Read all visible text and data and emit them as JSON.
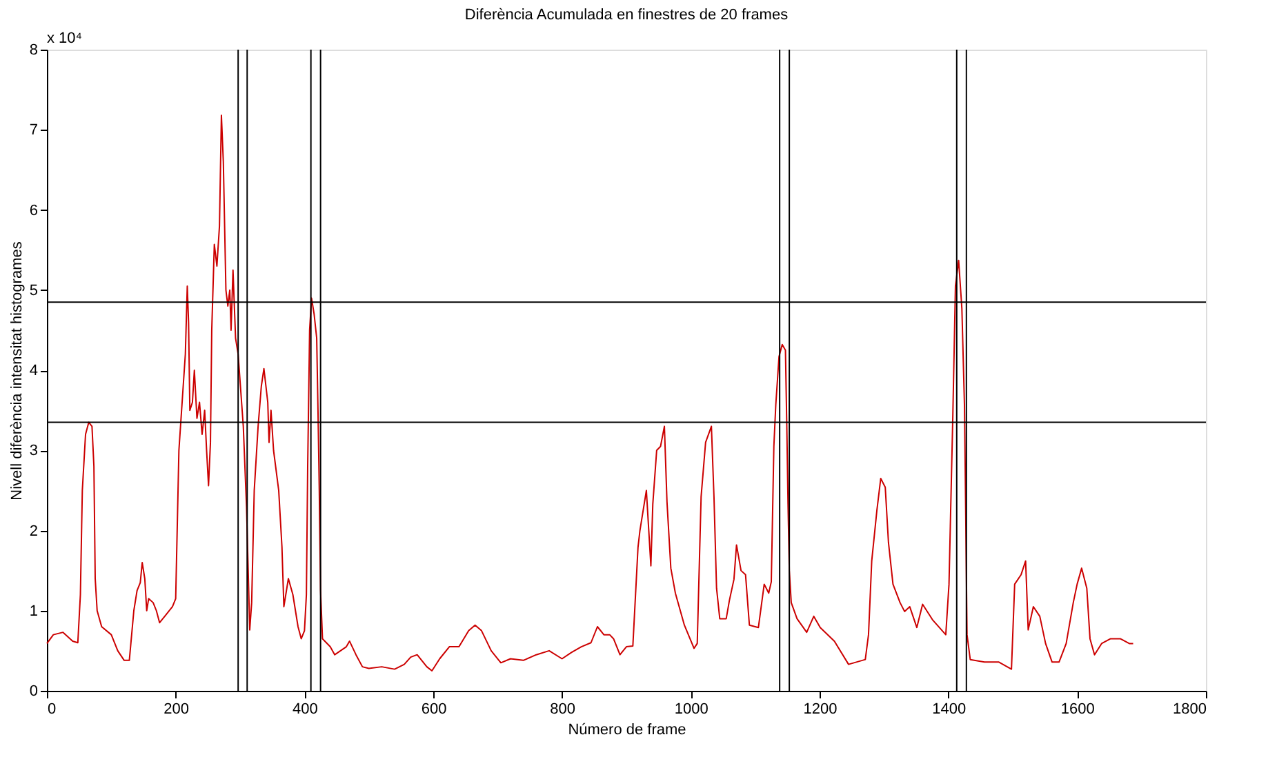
{
  "chart_data": {
    "type": "line",
    "title": "Diferència Acumulada en finestres de 20 frames",
    "xlabel": "Número de frame",
    "ylabel": "Nivell diferència intensitat histogrames",
    "annotations": [
      "x 10⁴"
    ],
    "xlim": [
      0,
      1800
    ],
    "xticks": [
      0,
      200,
      400,
      600,
      800,
      1000,
      1200,
      1400,
      1600,
      1800
    ],
    "ylim": [
      0,
      8
    ],
    "yticks": [
      0,
      1,
      2,
      3,
      4,
      5,
      6,
      7,
      8
    ],
    "grid": false,
    "marker": "none",
    "line_style": "solid",
    "ref_lines": [
      {
        "axis": "y",
        "value": 4.85,
        "color": "#000000"
      },
      {
        "axis": "y",
        "value": 3.35,
        "color": "#000000"
      },
      {
        "axis": "x",
        "value": 297,
        "color": "#000000"
      },
      {
        "axis": "x",
        "value": 311,
        "color": "#000000"
      },
      {
        "axis": "x",
        "value": 410,
        "color": "#000000"
      },
      {
        "axis": "x",
        "value": 425,
        "color": "#000000"
      },
      {
        "axis": "x",
        "value": 1138,
        "color": "#000000"
      },
      {
        "axis": "x",
        "value": 1153,
        "color": "#000000"
      },
      {
        "axis": "x",
        "value": 1413,
        "color": "#000000"
      },
      {
        "axis": "x",
        "value": 1428,
        "color": "#000000"
      }
    ],
    "series": [
      {
        "color": "#cc0000",
        "x": [
          0,
          10,
          25,
          40,
          48,
          52,
          55,
          60,
          65,
          70,
          73,
          75,
          78,
          85,
          100,
          110,
          120,
          128,
          135,
          140,
          145,
          148,
          152,
          155,
          158,
          165,
          170,
          175,
          185,
          195,
          200,
          205,
          210,
          215,
          218,
          220,
          222,
          226,
          229,
          233,
          237,
          241,
          245,
          248,
          251,
          254,
          256,
          260,
          264,
          268,
          271,
          274,
          278,
          281,
          284,
          286,
          289,
          293,
          297,
          305,
          310,
          315,
          318,
          322,
          328,
          333,
          337,
          343,
          345,
          348,
          352,
          360,
          365,
          368,
          375,
          382,
          390,
          395,
          400,
          403,
          405,
          408,
          411,
          415,
          419,
          421,
          423,
          425,
          428,
          440,
          447,
          465,
          470,
          480,
          490,
          500,
          520,
          540,
          555,
          565,
          575,
          590,
          598,
          610,
          625,
          640,
          655,
          665,
          675,
          690,
          705,
          720,
          740,
          760,
          780,
          800,
          815,
          830,
          845,
          855,
          865,
          874,
          880,
          890,
          900,
          910,
          918,
          921,
          931,
          938,
          941,
          947,
          953,
          959,
          963,
          969,
          976,
          990,
          1005,
          1010,
          1016,
          1023,
          1032,
          1036,
          1040,
          1045,
          1055,
          1060,
          1067,
          1071,
          1078,
          1085,
          1091,
          1105,
          1114,
          1121,
          1125,
          1129,
          1132,
          1137,
          1142,
          1147,
          1149,
          1151,
          1153,
          1156,
          1165,
          1180,
          1191,
          1201,
          1223,
          1245,
          1271,
          1276,
          1281,
          1289,
          1295,
          1302,
          1307,
          1314,
          1325,
          1332,
          1340,
          1351,
          1360,
          1376,
          1396,
          1401,
          1407,
          1411,
          1416,
          1421,
          1425,
          1427,
          1429,
          1434,
          1456,
          1478,
          1498,
          1503,
          1513,
          1520,
          1524,
          1532,
          1542,
          1551,
          1561,
          1572,
          1583,
          1594,
          1600,
          1607,
          1615,
          1620,
          1627,
          1638,
          1652,
          1667,
          1681,
          1687
        ],
        "values": [
          0.59,
          0.7,
          0.73,
          0.62,
          0.6,
          1.2,
          2.5,
          3.2,
          3.35,
          3.3,
          2.8,
          1.4,
          1.0,
          0.8,
          0.7,
          0.5,
          0.38,
          0.38,
          1.0,
          1.25,
          1.35,
          1.6,
          1.4,
          1.0,
          1.15,
          1.1,
          1.0,
          0.85,
          0.95,
          1.05,
          1.15,
          3.0,
          3.6,
          4.2,
          5.05,
          4.6,
          3.5,
          3.6,
          4.0,
          3.4,
          3.6,
          3.2,
          3.5,
          3.0,
          2.56,
          3.1,
          4.5,
          5.57,
          5.3,
          5.8,
          7.18,
          6.6,
          5.0,
          4.8,
          5.0,
          4.5,
          5.25,
          4.4,
          4.2,
          3.3,
          2.3,
          0.76,
          1.1,
          2.5,
          3.3,
          3.8,
          4.02,
          3.6,
          3.1,
          3.5,
          3.0,
          2.5,
          1.8,
          1.05,
          1.4,
          1.2,
          0.8,
          0.65,
          0.75,
          1.2,
          2.8,
          4.5,
          4.9,
          4.7,
          4.4,
          3.5,
          2.5,
          1.25,
          0.65,
          0.55,
          0.45,
          0.55,
          0.62,
          0.45,
          0.3,
          0.28,
          0.3,
          0.27,
          0.33,
          0.42,
          0.45,
          0.3,
          0.25,
          0.4,
          0.55,
          0.55,
          0.75,
          0.82,
          0.75,
          0.5,
          0.35,
          0.4,
          0.38,
          0.45,
          0.5,
          0.4,
          0.48,
          0.55,
          0.6,
          0.8,
          0.7,
          0.7,
          0.65,
          0.45,
          0.55,
          0.56,
          1.79,
          2.0,
          2.5,
          1.56,
          2.33,
          3.0,
          3.05,
          3.3,
          2.36,
          1.53,
          1.22,
          0.82,
          0.53,
          0.59,
          2.42,
          3.1,
          3.3,
          2.42,
          1.28,
          0.9,
          0.9,
          1.13,
          1.39,
          1.82,
          1.5,
          1.45,
          0.82,
          0.79,
          1.33,
          1.22,
          1.36,
          3.05,
          3.57,
          4.17,
          4.32,
          4.25,
          3.34,
          2.33,
          1.5,
          1.1,
          0.9,
          0.73,
          0.93,
          0.79,
          0.62,
          0.33,
          0.39,
          0.7,
          1.62,
          2.25,
          2.65,
          2.54,
          1.85,
          1.33,
          1.1,
          0.99,
          1.05,
          0.79,
          1.08,
          0.88,
          0.7,
          1.33,
          3.45,
          5.05,
          5.37,
          4.77,
          3.57,
          2.19,
          0.7,
          0.39,
          0.36,
          0.36,
          0.27,
          1.33,
          1.45,
          1.62,
          0.76,
          1.05,
          0.93,
          0.59,
          0.36,
          0.36,
          0.59,
          1.1,
          1.33,
          1.53,
          1.28,
          0.65,
          0.45,
          0.59,
          0.65,
          0.65,
          0.59,
          0.59
        ]
      }
    ]
  }
}
